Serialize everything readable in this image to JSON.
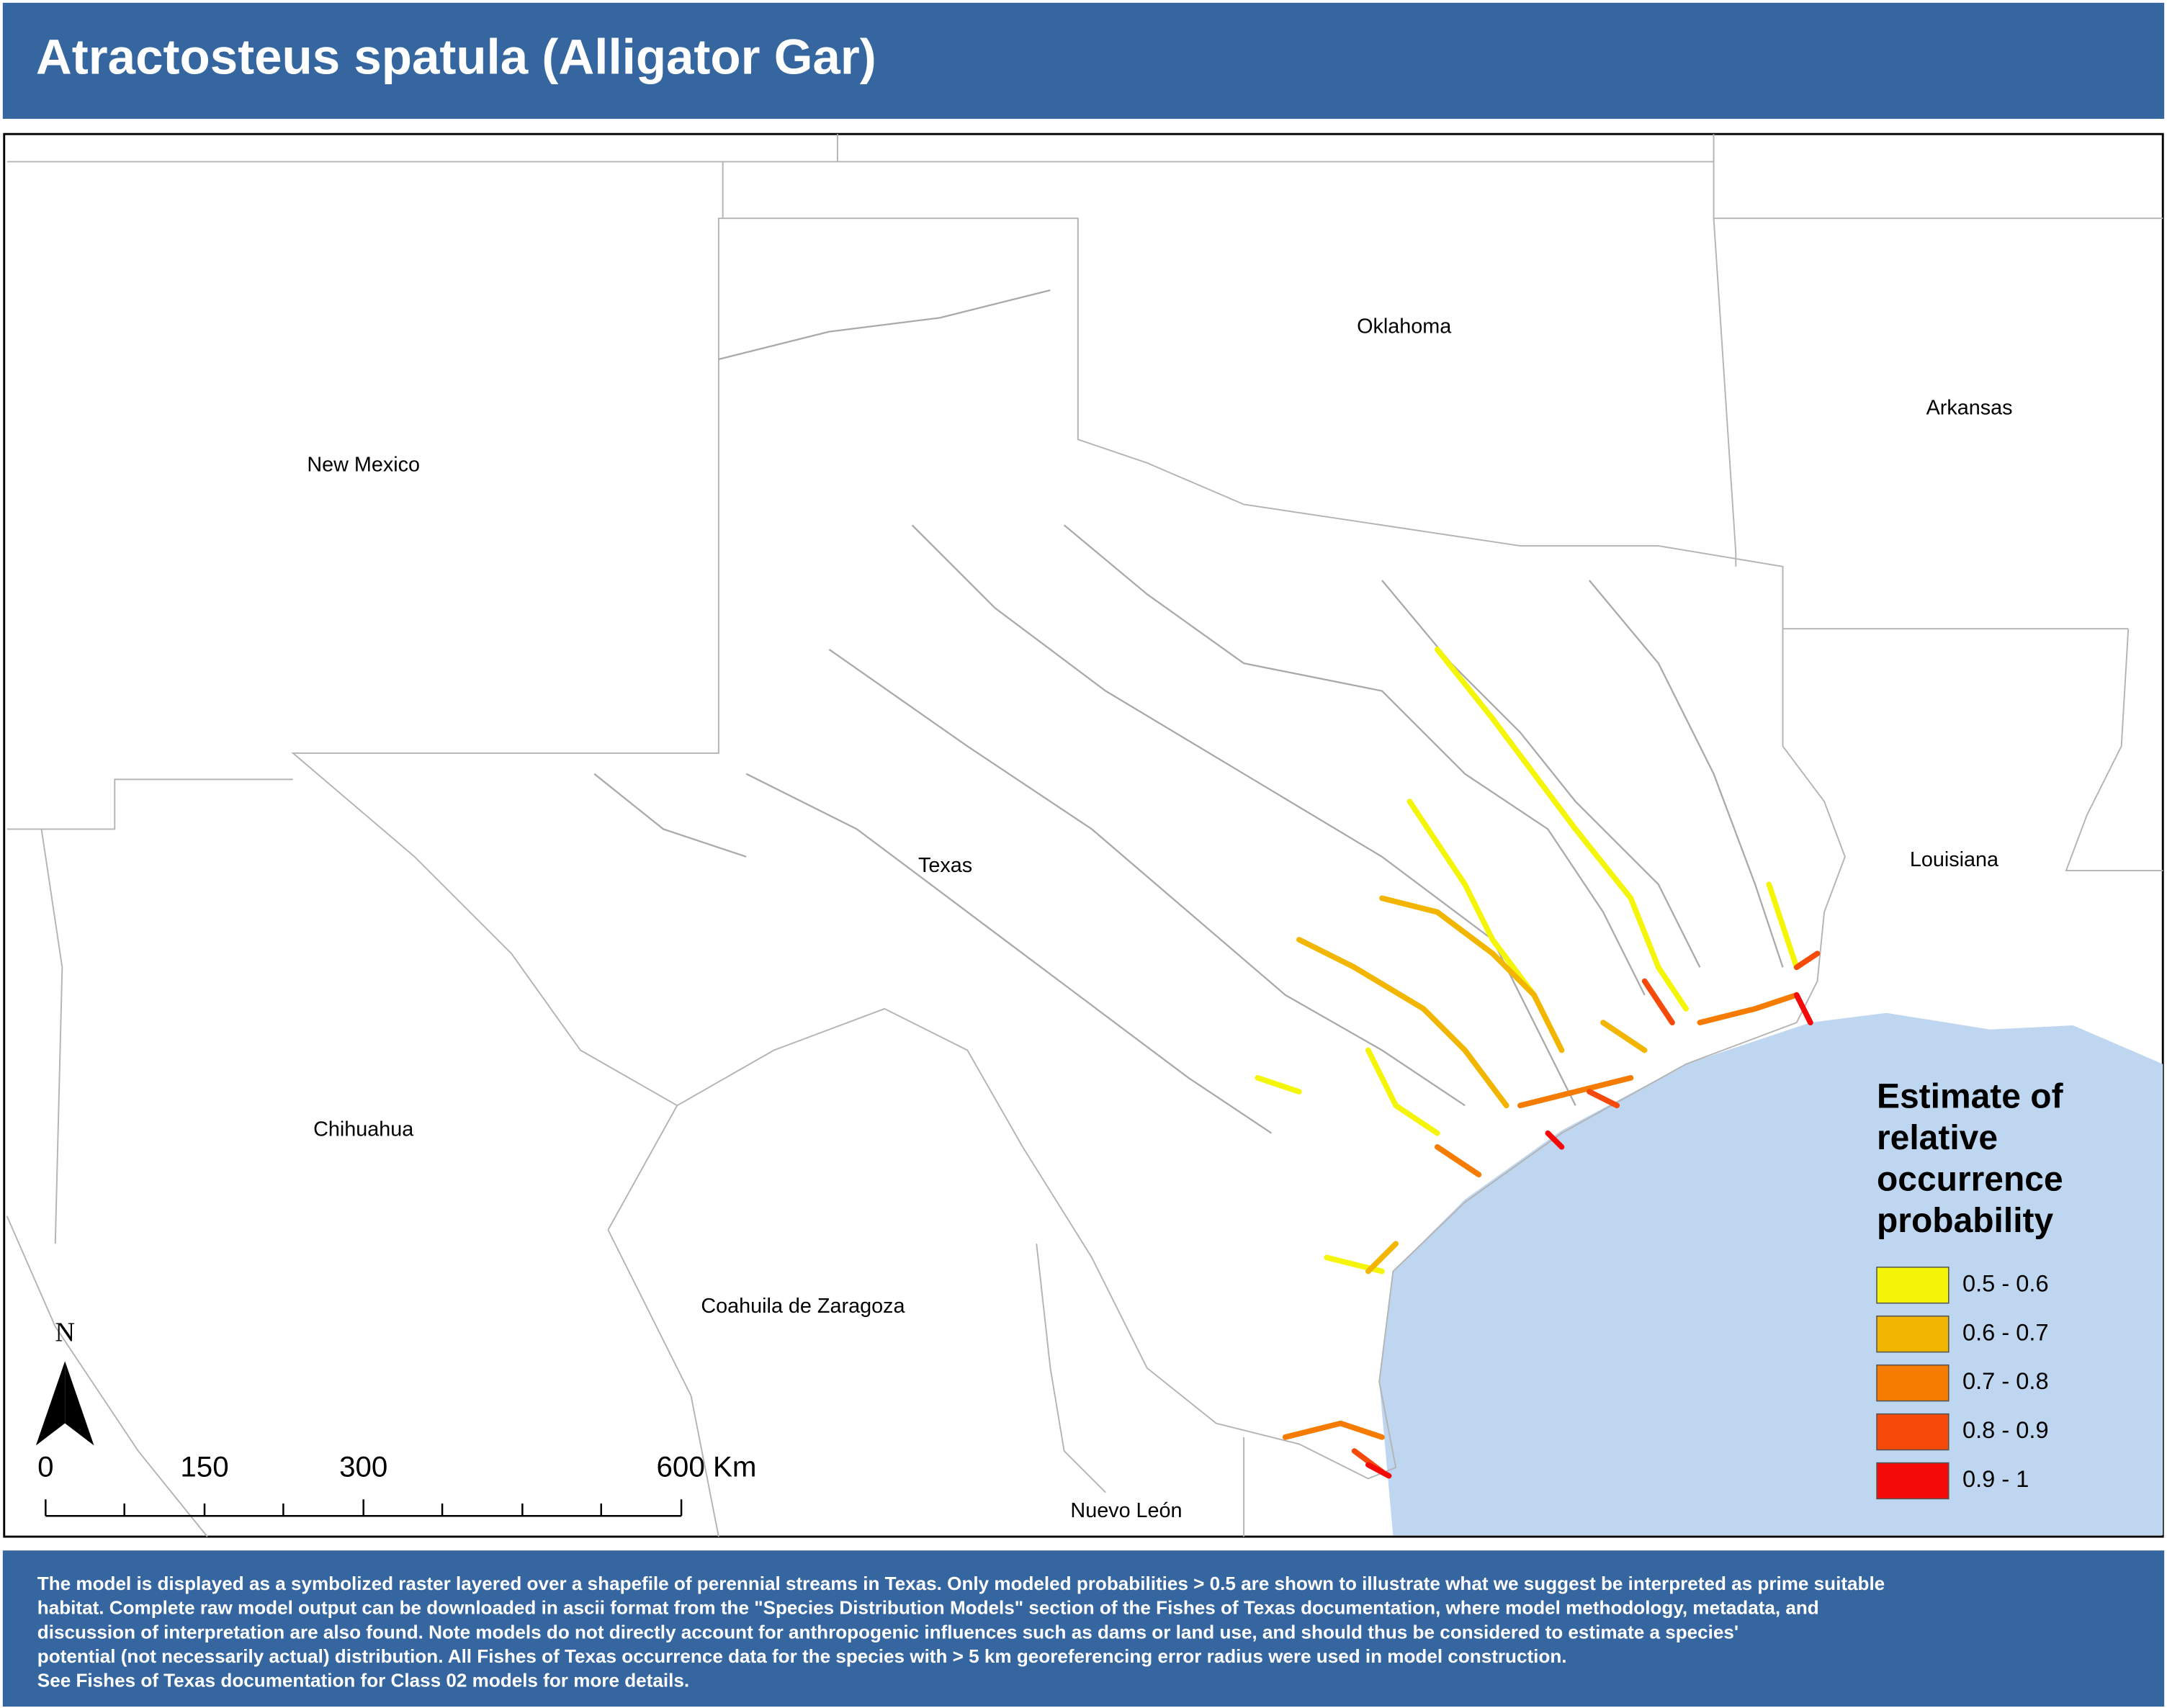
{
  "header": {
    "title": "Atractosteus spatula (Alligator Gar)"
  },
  "map": {
    "places": [
      "Oklahoma",
      "Arkansas",
      "New Mexico",
      "Texas",
      "Louisiana",
      "Chihuahua",
      "Coahuila de Zaragoza",
      "Nuevo León"
    ],
    "north": "N",
    "scale": [
      "0",
      "150",
      "300",
      "600 Km"
    ]
  },
  "legend": {
    "title": [
      "Estimate of",
      "relative",
      "occurrence",
      "probability"
    ],
    "items": [
      {
        "label": "0.5 - 0.6",
        "color": "#f5f50a"
      },
      {
        "label": "0.6 - 0.7",
        "color": "#f2b600"
      },
      {
        "label": "0.7 - 0.8",
        "color": "#f57c00"
      },
      {
        "label": "0.8 - 0.9",
        "color": "#f54a0a"
      },
      {
        "label": "0.9 - 1",
        "color": "#f50a0a"
      }
    ]
  },
  "footer": {
    "lines": [
      "The model is displayed as a symbolized raster layered over a shapefile of perennial streams in Texas. Only modeled probabilities > 0.5 are shown to illustrate what we suggest be interpreted as prime suitable",
      "habitat. Complete raw model output can be downloaded in ascii format from the \"Species Distribution Models\" section of the Fishes of Texas documentation, where model methodology, metadata, and",
      " discussion of interpretation are also found. Note models do not directly account for anthropogenic influences such as dams or land use, and should thus be considered to estimate a species'",
      "potential (not necessarily actual) distribution. All Fishes of Texas occurrence data for the species with > 5 km georeferencing error radius were used in model construction.",
      "See Fishes of Texas documentation for Class 02 models for more details."
    ]
  }
}
